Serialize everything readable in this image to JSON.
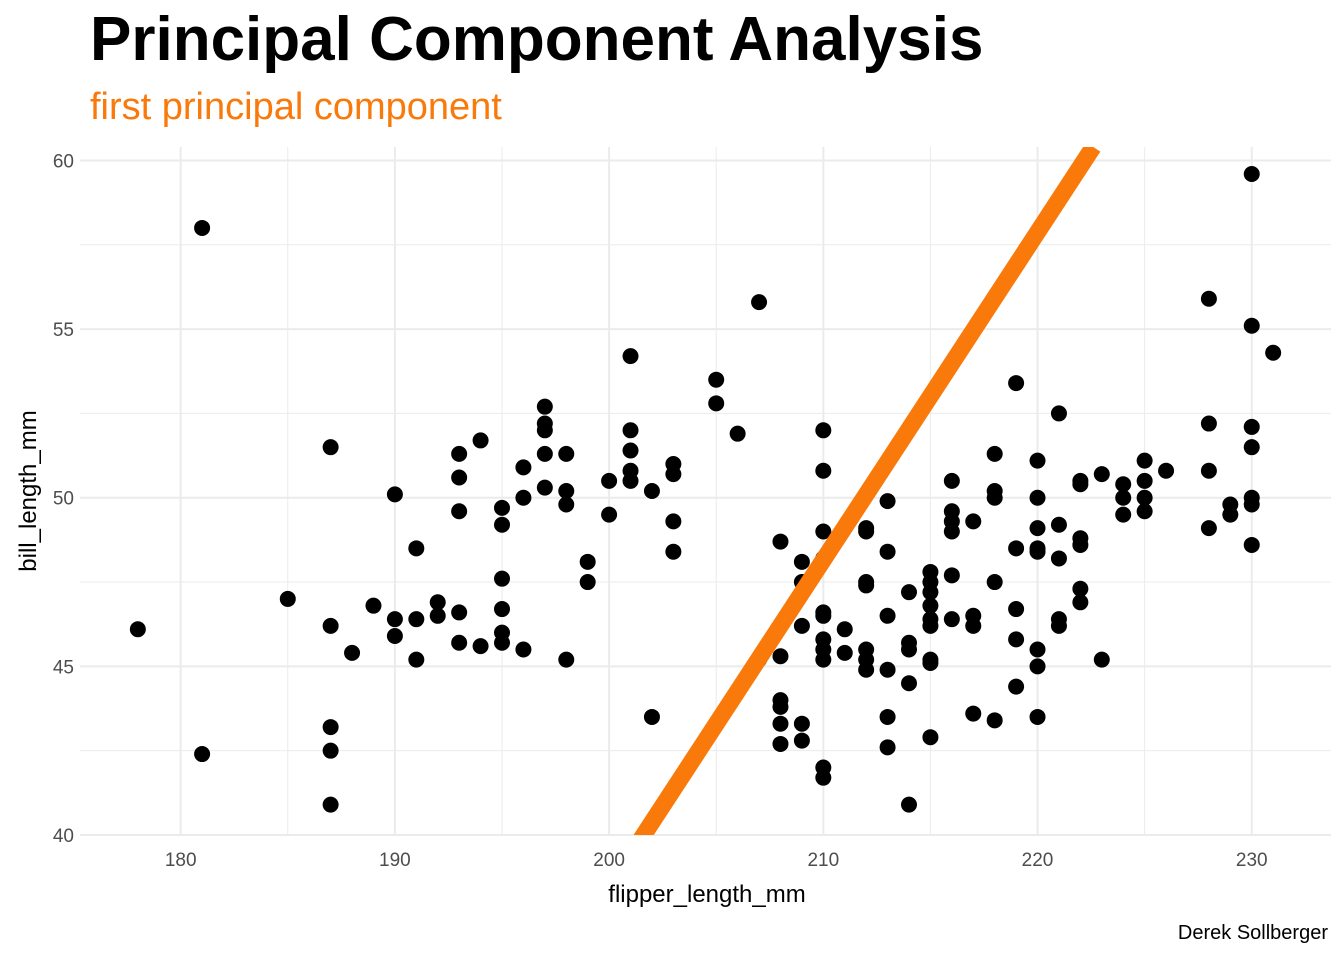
{
  "caption": "Derek Sollberger",
  "colors": {
    "accent": "#f97a0a",
    "points": "#000000",
    "grid": "#ebebeb"
  },
  "chart_data": {
    "type": "scatter",
    "title": "Principal Component Analysis",
    "subtitle": "first principal component",
    "xlabel": "flipper_length_mm",
    "ylabel": "bill_length_mm",
    "xlim": [
      175.3,
      233.7
    ],
    "ylim": [
      40,
      60.4
    ],
    "xticks": [
      180,
      190,
      200,
      210,
      220,
      230
    ],
    "yticks": [
      40,
      45,
      50,
      55,
      60
    ],
    "grid": true,
    "pc_line": {
      "label": "first principal component",
      "x": [
        201.2,
        222.6
      ],
      "y": [
        39.6,
        60.4
      ]
    },
    "points": [
      [
        178,
        46.1
      ],
      [
        181,
        58.0
      ],
      [
        181,
        42.4
      ],
      [
        185,
        47.0
      ],
      [
        187,
        51.5
      ],
      [
        187,
        46.2
      ],
      [
        187,
        43.2
      ],
      [
        187,
        42.5
      ],
      [
        187,
        40.9
      ],
      [
        188,
        45.4
      ],
      [
        189,
        46.8
      ],
      [
        190,
        50.1
      ],
      [
        190,
        46.4
      ],
      [
        190,
        45.9
      ],
      [
        191,
        48.5
      ],
      [
        191,
        46.4
      ],
      [
        191,
        45.2
      ],
      [
        192,
        46.9
      ],
      [
        192,
        46.5
      ],
      [
        193,
        51.3
      ],
      [
        193,
        50.6
      ],
      [
        193,
        49.6
      ],
      [
        193,
        46.6
      ],
      [
        193,
        45.7
      ],
      [
        194,
        51.7
      ],
      [
        194,
        45.6
      ],
      [
        195,
        49.7
      ],
      [
        195,
        49.2
      ],
      [
        195,
        47.6
      ],
      [
        195,
        46.7
      ],
      [
        195,
        46.0
      ],
      [
        195,
        45.7
      ],
      [
        196,
        50.9
      ],
      [
        196,
        50.0
      ],
      [
        196,
        45.5
      ],
      [
        197,
        52.7
      ],
      [
        197,
        52.2
      ],
      [
        197,
        52.0
      ],
      [
        197,
        51.3
      ],
      [
        197,
        50.3
      ],
      [
        198,
        51.3
      ],
      [
        198,
        50.2
      ],
      [
        198,
        49.8
      ],
      [
        198,
        45.2
      ],
      [
        199,
        48.1
      ],
      [
        199,
        47.5
      ],
      [
        200,
        50.5
      ],
      [
        200,
        49.5
      ],
      [
        201,
        54.2
      ],
      [
        201,
        52.0
      ],
      [
        201,
        51.4
      ],
      [
        201,
        50.8
      ],
      [
        201,
        50.5
      ],
      [
        202,
        50.2
      ],
      [
        202,
        43.5
      ],
      [
        203,
        51.0
      ],
      [
        203,
        50.7
      ],
      [
        203,
        49.3
      ],
      [
        203,
        48.4
      ],
      [
        205,
        53.5
      ],
      [
        205,
        52.8
      ],
      [
        206,
        51.9
      ],
      [
        207,
        55.8
      ],
      [
        207,
        45.2
      ],
      [
        208,
        48.7
      ],
      [
        208,
        45.3
      ],
      [
        208,
        44.0
      ],
      [
        208,
        43.8
      ],
      [
        208,
        43.3
      ],
      [
        208,
        42.7
      ],
      [
        209,
        48.1
      ],
      [
        209,
        47.5
      ],
      [
        209,
        46.2
      ],
      [
        209,
        43.3
      ],
      [
        209,
        42.8
      ],
      [
        210,
        52.0
      ],
      [
        210,
        50.8
      ],
      [
        210,
        49.0
      ],
      [
        210,
        48.2
      ],
      [
        210,
        46.6
      ],
      [
        210,
        46.5
      ],
      [
        210,
        45.8
      ],
      [
        210,
        45.5
      ],
      [
        210,
        45.2
      ],
      [
        210,
        42.0
      ],
      [
        210,
        41.7
      ],
      [
        211,
        46.1
      ],
      [
        211,
        45.4
      ],
      [
        212,
        49.1
      ],
      [
        212,
        49.0
      ],
      [
        212,
        47.5
      ],
      [
        212,
        47.4
      ],
      [
        212,
        45.5
      ],
      [
        212,
        45.2
      ],
      [
        212,
        44.9
      ],
      [
        213,
        49.9
      ],
      [
        213,
        48.4
      ],
      [
        213,
        46.5
      ],
      [
        213,
        44.9
      ],
      [
        213,
        43.5
      ],
      [
        213,
        42.6
      ],
      [
        214,
        47.2
      ],
      [
        214,
        45.7
      ],
      [
        214,
        45.5
      ],
      [
        214,
        44.5
      ],
      [
        214,
        40.9
      ],
      [
        215,
        47.8
      ],
      [
        215,
        47.5
      ],
      [
        215,
        47.2
      ],
      [
        215,
        46.8
      ],
      [
        215,
        46.4
      ],
      [
        215,
        46.2
      ],
      [
        215,
        45.2
      ],
      [
        215,
        45.1
      ],
      [
        215,
        42.9
      ],
      [
        216,
        50.5
      ],
      [
        216,
        49.6
      ],
      [
        216,
        49.3
      ],
      [
        216,
        49.0
      ],
      [
        216,
        47.7
      ],
      [
        216,
        46.4
      ],
      [
        217,
        49.3
      ],
      [
        217,
        46.5
      ],
      [
        217,
        46.2
      ],
      [
        217,
        43.6
      ],
      [
        218,
        51.3
      ],
      [
        218,
        50.2
      ],
      [
        218,
        50.0
      ],
      [
        218,
        47.5
      ],
      [
        218,
        43.4
      ],
      [
        219,
        53.4
      ],
      [
        219,
        48.5
      ],
      [
        219,
        46.7
      ],
      [
        219,
        45.8
      ],
      [
        219,
        44.4
      ],
      [
        220,
        51.1
      ],
      [
        220,
        50.0
      ],
      [
        220,
        49.1
      ],
      [
        220,
        48.5
      ],
      [
        220,
        48.4
      ],
      [
        220,
        45.5
      ],
      [
        220,
        45.0
      ],
      [
        220,
        43.5
      ],
      [
        221,
        52.5
      ],
      [
        221,
        49.2
      ],
      [
        221,
        48.2
      ],
      [
        221,
        46.4
      ],
      [
        221,
        46.2
      ],
      [
        222,
        50.5
      ],
      [
        222,
        50.4
      ],
      [
        222,
        48.8
      ],
      [
        222,
        48.6
      ],
      [
        222,
        47.3
      ],
      [
        222,
        46.9
      ],
      [
        223,
        50.7
      ],
      [
        223,
        45.2
      ],
      [
        224,
        50.4
      ],
      [
        224,
        50.0
      ],
      [
        224,
        49.5
      ],
      [
        225,
        51.1
      ],
      [
        225,
        50.5
      ],
      [
        225,
        50.0
      ],
      [
        225,
        49.6
      ],
      [
        226,
        50.8
      ],
      [
        228,
        55.9
      ],
      [
        228,
        52.2
      ],
      [
        228,
        50.8
      ],
      [
        228,
        49.1
      ],
      [
        229,
        49.8
      ],
      [
        229,
        49.5
      ],
      [
        230,
        59.6
      ],
      [
        230,
        55.1
      ],
      [
        230,
        52.1
      ],
      [
        230,
        51.5
      ],
      [
        230,
        50.0
      ],
      [
        230,
        49.8
      ],
      [
        230,
        48.6
      ],
      [
        231,
        54.3
      ]
    ]
  }
}
